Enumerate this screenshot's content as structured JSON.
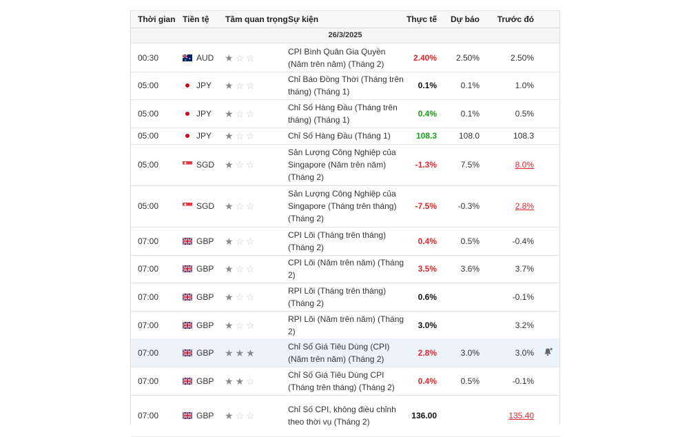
{
  "headers": {
    "time": "Thời gian",
    "currency": "Tiền tệ",
    "importance": "Tầm quan trọng",
    "event": "Sự kiện",
    "actual": "Thực tế",
    "forecast": "Dự báo",
    "previous": "Trước đó"
  },
  "date_label": "26/3/2025",
  "colors": {
    "red": "#e5262b",
    "green": "#1a9e1a",
    "highlight": "#edf3fa"
  },
  "rows": [
    {
      "time": "00:30",
      "currency": "AUD",
      "flag": "au-flag-icon",
      "stars": 1,
      "event": "CPI Bình Quân Gia Quyền (Năm trên năm) (Tháng 2)",
      "actual": "2.40%",
      "actual_color": "red",
      "forecast": "2.50%",
      "previous": "2.50%",
      "prev_style": "plain"
    },
    {
      "time": "05:00",
      "currency": "JPY",
      "flag": "jp-flag-icon",
      "stars": 1,
      "event": "Chỉ Báo Đồng Thời (Tháng trên tháng) (Tháng 1)",
      "actual": "0.1%",
      "actual_color": "black",
      "forecast": "0.1%",
      "previous": "1.0%",
      "prev_style": "plain"
    },
    {
      "time": "05:00",
      "currency": "JPY",
      "flag": "jp-flag-icon",
      "stars": 1,
      "event": "Chỉ Số Hàng Đầu (Tháng trên tháng) (Tháng 1)",
      "actual": "0.4%",
      "actual_color": "green",
      "forecast": "0.1%",
      "previous": "0.5%",
      "prev_style": "plain"
    },
    {
      "time": "05:00",
      "currency": "JPY",
      "flag": "jp-flag-icon",
      "stars": 1,
      "event": "Chỉ Số Hàng Đầu (Tháng 1)",
      "actual": "108.3",
      "actual_color": "green",
      "forecast": "108.0",
      "previous": "108.3",
      "prev_style": "plain"
    },
    {
      "time": "05:00",
      "currency": "SGD",
      "flag": "sg-flag-icon",
      "stars": 1,
      "event": "Sản Lượng Công Nghiệp của Singapore (Năm trên năm) (Tháng 2)",
      "actual": "-1.3%",
      "actual_color": "red",
      "forecast": "7.5%",
      "previous": "8.0%",
      "prev_style": "uline"
    },
    {
      "time": "05:00",
      "currency": "SGD",
      "flag": "sg-flag-icon",
      "stars": 1,
      "event": "Sản Lượng Công Nghiệp của Singapore (Tháng trên tháng) (Tháng 2)",
      "actual": "-7.5%",
      "actual_color": "red",
      "forecast": "-0.3%",
      "previous": "2.8%",
      "prev_style": "uline"
    },
    {
      "time": "07:00",
      "currency": "GBP",
      "flag": "gb-flag-icon",
      "stars": 1,
      "event": "CPI Lõi (Tháng trên tháng) (Tháng 2)",
      "actual": "0.4%",
      "actual_color": "red",
      "forecast": "0.5%",
      "previous": "-0.4%",
      "prev_style": "plain"
    },
    {
      "time": "07:00",
      "currency": "GBP",
      "flag": "gb-flag-icon",
      "stars": 1,
      "event": "CPI Lõi (Năm trên năm) (Tháng 2)",
      "actual": "3.5%",
      "actual_color": "red",
      "forecast": "3.6%",
      "previous": "3.7%",
      "prev_style": "plain"
    },
    {
      "time": "07:00",
      "currency": "GBP",
      "flag": "gb-flag-icon",
      "stars": 1,
      "event": "RPI Lõi (Tháng trên tháng) (Tháng 2)",
      "actual": "0.6%",
      "actual_color": "black",
      "forecast": "",
      "previous": "-0.1%",
      "prev_style": "plain"
    },
    {
      "time": "07:00",
      "currency": "GBP",
      "flag": "gb-flag-icon",
      "stars": 1,
      "event": "RPI Lõi (Năm trên năm) (Tháng 2)",
      "actual": "3.0%",
      "actual_color": "black",
      "forecast": "",
      "previous": "3.2%",
      "prev_style": "plain"
    },
    {
      "time": "07:00",
      "currency": "GBP",
      "flag": "gb-flag-icon",
      "stars": 3,
      "event": "Chỉ Số Giá Tiêu Dùng (CPI) (Năm trên năm) (Tháng 2)",
      "actual": "2.8%",
      "actual_color": "red",
      "forecast": "3.0%",
      "previous": "3.0%",
      "prev_style": "plain",
      "highlight": true,
      "alert": "bell-plus-icon"
    },
    {
      "time": "07:00",
      "currency": "GBP",
      "flag": "gb-flag-icon",
      "stars": 2,
      "event": "Chỉ Số Giá Tiêu Dùng CPI (Tháng trên tháng) (Tháng 2)",
      "actual": "0.4%",
      "actual_color": "red",
      "forecast": "0.5%",
      "previous": "-0.1%",
      "prev_style": "plain"
    },
    {
      "time": "07:00",
      "currency": "GBP",
      "flag": "gb-flag-icon",
      "stars": 1,
      "event": "Chỉ Số CPI, không điều chỉnh theo thời vụ (Tháng 2)",
      "actual": "136.00",
      "actual_color": "black",
      "forecast": "",
      "previous": "135.40",
      "prev_style": "uline"
    }
  ]
}
